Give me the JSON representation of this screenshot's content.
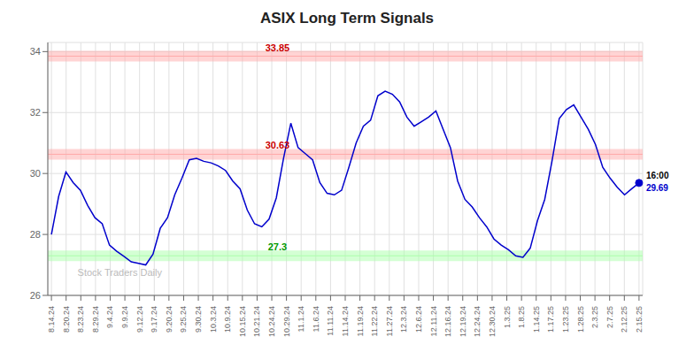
{
  "chart_data": {
    "type": "line",
    "title": "ASIX Long Term Signals",
    "color": "#0000cc",
    "grid": true,
    "x": [
      0,
      1,
      2,
      3,
      4,
      5,
      6,
      7,
      8,
      9,
      10,
      11,
      12,
      13,
      14,
      15,
      16,
      17,
      18,
      19,
      20,
      21,
      22,
      23,
      24,
      25,
      26,
      27,
      28,
      29,
      30,
      31,
      32,
      33,
      34,
      35,
      36,
      37,
      38,
      39,
      40,
      41,
      42,
      43,
      44,
      45,
      46,
      47,
      48,
      49,
      50,
      51,
      52,
      53,
      54,
      55,
      56,
      57,
      58,
      59,
      60,
      61,
      62,
      63,
      64,
      65,
      66,
      67,
      68,
      69,
      70,
      71,
      72,
      73,
      74,
      75,
      76,
      77,
      78,
      79,
      80,
      81
    ],
    "values": [
      28.0,
      29.25,
      30.05,
      29.7,
      29.45,
      28.95,
      28.55,
      28.35,
      27.65,
      27.45,
      27.28,
      27.1,
      27.05,
      27.0,
      27.35,
      28.2,
      28.55,
      29.3,
      29.85,
      30.45,
      30.5,
      30.4,
      30.35,
      30.25,
      30.1,
      29.75,
      29.5,
      28.8,
      28.35,
      28.25,
      28.5,
      29.2,
      30.5,
      31.65,
      30.85,
      30.65,
      30.45,
      29.7,
      29.35,
      29.3,
      29.45,
      30.2,
      31.0,
      31.55,
      31.75,
      32.55,
      32.7,
      32.6,
      32.35,
      31.85,
      31.55,
      31.7,
      31.85,
      32.05,
      31.45,
      30.85,
      29.75,
      29.15,
      28.9,
      28.55,
      28.25,
      27.85,
      27.65,
      27.5,
      27.3,
      27.25,
      27.55,
      28.45,
      29.15,
      30.4,
      31.8,
      32.1,
      32.25,
      31.85,
      31.45,
      30.95,
      30.2,
      29.85,
      29.55,
      29.3,
      29.5,
      29.69
    ],
    "xlim": [
      -0.5,
      81.5
    ],
    "xticks": [
      {
        "value": 0,
        "label": "8.14.24"
      },
      {
        "value": 2.025,
        "label": "8.20.24"
      },
      {
        "value": 4.05,
        "label": "8.23.24"
      },
      {
        "value": 6.075,
        "label": "8.29.24"
      },
      {
        "value": 8.1,
        "label": "9.4.24"
      },
      {
        "value": 10.125,
        "label": "9.9.24"
      },
      {
        "value": 12.15,
        "label": "9.12.24"
      },
      {
        "value": 14.175,
        "label": "9.17.24"
      },
      {
        "value": 16.2,
        "label": "9.20.24"
      },
      {
        "value": 18.225,
        "label": "9.25.24"
      },
      {
        "value": 20.25,
        "label": "9.30.24"
      },
      {
        "value": 22.275,
        "label": "10.3.24"
      },
      {
        "value": 24.3,
        "label": "10.9.24"
      },
      {
        "value": 26.325,
        "label": "10.15.24"
      },
      {
        "value": 28.35,
        "label": "10.21.24"
      },
      {
        "value": 30.375,
        "label": "10.24.24"
      },
      {
        "value": 32.4,
        "label": "10.29.24"
      },
      {
        "value": 34.425,
        "label": "11.1.24"
      },
      {
        "value": 36.45,
        "label": "11.6.24"
      },
      {
        "value": 38.475,
        "label": "11.11.24"
      },
      {
        "value": 40.5,
        "label": "11.14.24"
      },
      {
        "value": 42.525,
        "label": "11.19.24"
      },
      {
        "value": 44.55,
        "label": "11.22.24"
      },
      {
        "value": 46.575,
        "label": "11.27.24"
      },
      {
        "value": 48.6,
        "label": "12.3.24"
      },
      {
        "value": 50.625,
        "label": "12.6.24"
      },
      {
        "value": 52.65,
        "label": "12.11.24"
      },
      {
        "value": 54.675,
        "label": "12.16.24"
      },
      {
        "value": 56.7,
        "label": "12.19.24"
      },
      {
        "value": 58.725,
        "label": "12.24.24"
      },
      {
        "value": 60.75,
        "label": "12.30.24"
      },
      {
        "value": 62.775,
        "label": "1.3.25"
      },
      {
        "value": 64.8,
        "label": "1.8.25"
      },
      {
        "value": 66.825,
        "label": "1.14.25"
      },
      {
        "value": 68.85,
        "label": "1.17.25"
      },
      {
        "value": 70.875,
        "label": "1.23.25"
      },
      {
        "value": 72.9,
        "label": "1.28.25"
      },
      {
        "value": 74.925,
        "label": "2.3.25"
      },
      {
        "value": 76.95,
        "label": "2.7.25"
      },
      {
        "value": 78.975,
        "label": "2.12.25"
      },
      {
        "value": 81,
        "label": "2.15.25"
      }
    ],
    "ylim": [
      26,
      34.3
    ],
    "yticks": [
      26,
      28,
      30,
      32,
      34
    ],
    "hlines": [
      {
        "value": 33.85,
        "color": "#ffaaaa",
        "label_color": "#cc0000"
      },
      {
        "value": 30.63,
        "color": "#ffaaaa",
        "label_color": "#cc0000"
      },
      {
        "value": 27.3,
        "color": "#aaffaa",
        "label_color": "#009900"
      }
    ],
    "end_label": {
      "text": "16:00",
      "color": "#000000"
    },
    "end_price": {
      "value": 29.69,
      "color": "#0000cc"
    },
    "watermark": {
      "text": "Stock Traders Daily",
      "color": "#bbbbbb"
    }
  }
}
